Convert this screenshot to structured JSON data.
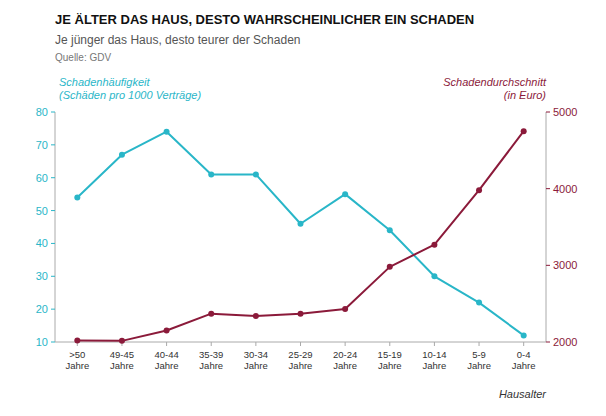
{
  "chart_data": {
    "type": "line",
    "title": "JE ÄLTER DAS HAUS, DESTO WAHRSCHEINLICHER EIN SCHADEN",
    "subtitle": "Je jünger das Haus, desto teurer der Schaden",
    "source": "Quelle: GDV",
    "x_label": "Hausalter",
    "categories": [
      ">50\nJahre",
      "49-45\nJahre",
      "40-44\nJahre",
      "35-39\nJahre",
      "30-34\nJahre",
      "25-29\nJahre",
      "20-24\nJahre",
      "15-19\nJahre",
      "10-14\nJahre",
      "5-9\nJahre",
      "0-4\nJahre"
    ],
    "series": [
      {
        "name": "Schadenhäufigkeit\n(Schäden pro 1000 Verträge)",
        "color": "#29b6c8",
        "marker": "circle",
        "values": [
          54,
          67,
          74,
          61,
          61,
          46,
          55,
          44,
          30,
          22,
          12
        ]
      },
      {
        "name": "Schadendurchschnitt\n(in Euro)",
        "color": "#8b1a3a",
        "marker": "circle",
        "axis": "y2",
        "values": [
          2020,
          2015,
          2150,
          2370,
          2340,
          2370,
          2430,
          2980,
          3270,
          3980,
          4750
        ]
      }
    ],
    "ylim": [
      10,
      80
    ],
    "yticks": [
      10,
      20,
      30,
      40,
      50,
      60,
      70,
      80
    ],
    "y2lim": [
      2000,
      5000
    ],
    "y2ticks": [
      2000,
      3000,
      4000,
      5000
    ]
  }
}
